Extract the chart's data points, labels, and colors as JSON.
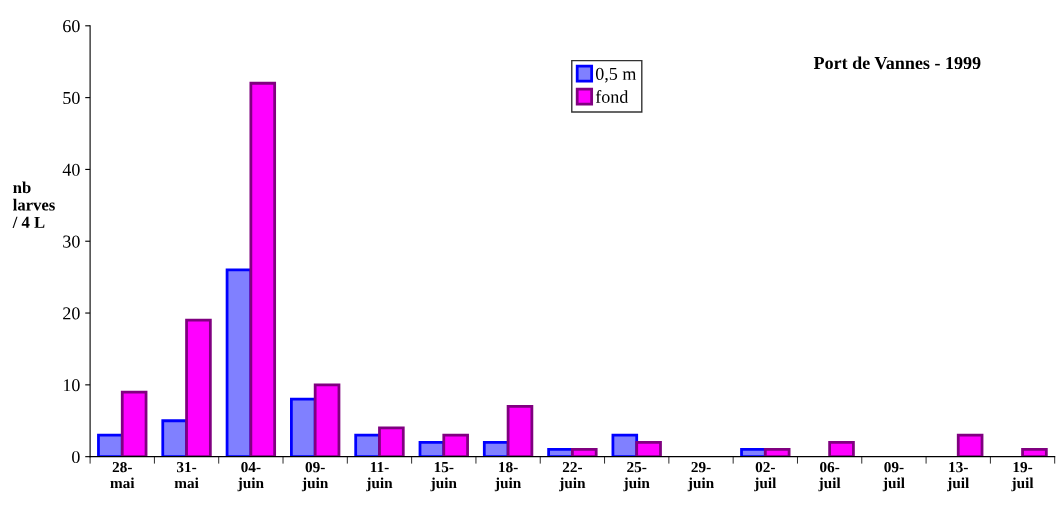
{
  "chart_data": {
    "type": "bar",
    "title": "Port de Vannes - 1999",
    "ylabel": "nb larves / 4 L",
    "categories": [
      "28-mai",
      "31-mai",
      "04-juin",
      "09-juin",
      "11-juin",
      "15-juin",
      "18-juin",
      "22-juin",
      "25-juin",
      "29-juin",
      "02-juil",
      "06-juil",
      "09-juil",
      "13-juil",
      "19-juil"
    ],
    "series": [
      {
        "name": "0,5 m",
        "color": "#8080ff",
        "values": [
          3,
          5,
          26,
          8,
          3,
          2,
          2,
          1,
          3,
          0,
          1,
          0,
          0,
          0,
          0
        ]
      },
      {
        "name": "fond",
        "color": "#ff00ff",
        "values": [
          9,
          19,
          52,
          10,
          4,
          3,
          7,
          1,
          2,
          0,
          1,
          2,
          0,
          3,
          1
        ]
      }
    ],
    "ylim": [
      0,
      60
    ],
    "yticks": [
      0,
      10,
      20,
      30,
      40,
      50,
      60
    ],
    "grid": false,
    "legend": "top"
  }
}
